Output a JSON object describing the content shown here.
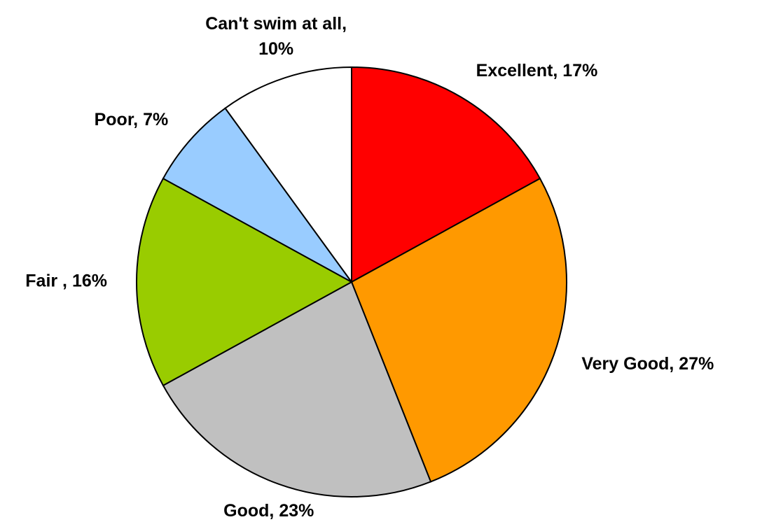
{
  "chart_data": {
    "type": "pie",
    "values": [
      17,
      27,
      23,
      16,
      7,
      10
    ],
    "value_labels": [
      "Excellent, 17%",
      "Very Good, 27%",
      "Good, 23%",
      "Fair , 16%",
      "Poor, 7%",
      "Can't swim at all, 10%"
    ],
    "colors": [
      "#ff0000",
      "#ff9900",
      "#c0c0c0",
      "#99cc00",
      "#99ccff",
      "#ffffff"
    ]
  }
}
